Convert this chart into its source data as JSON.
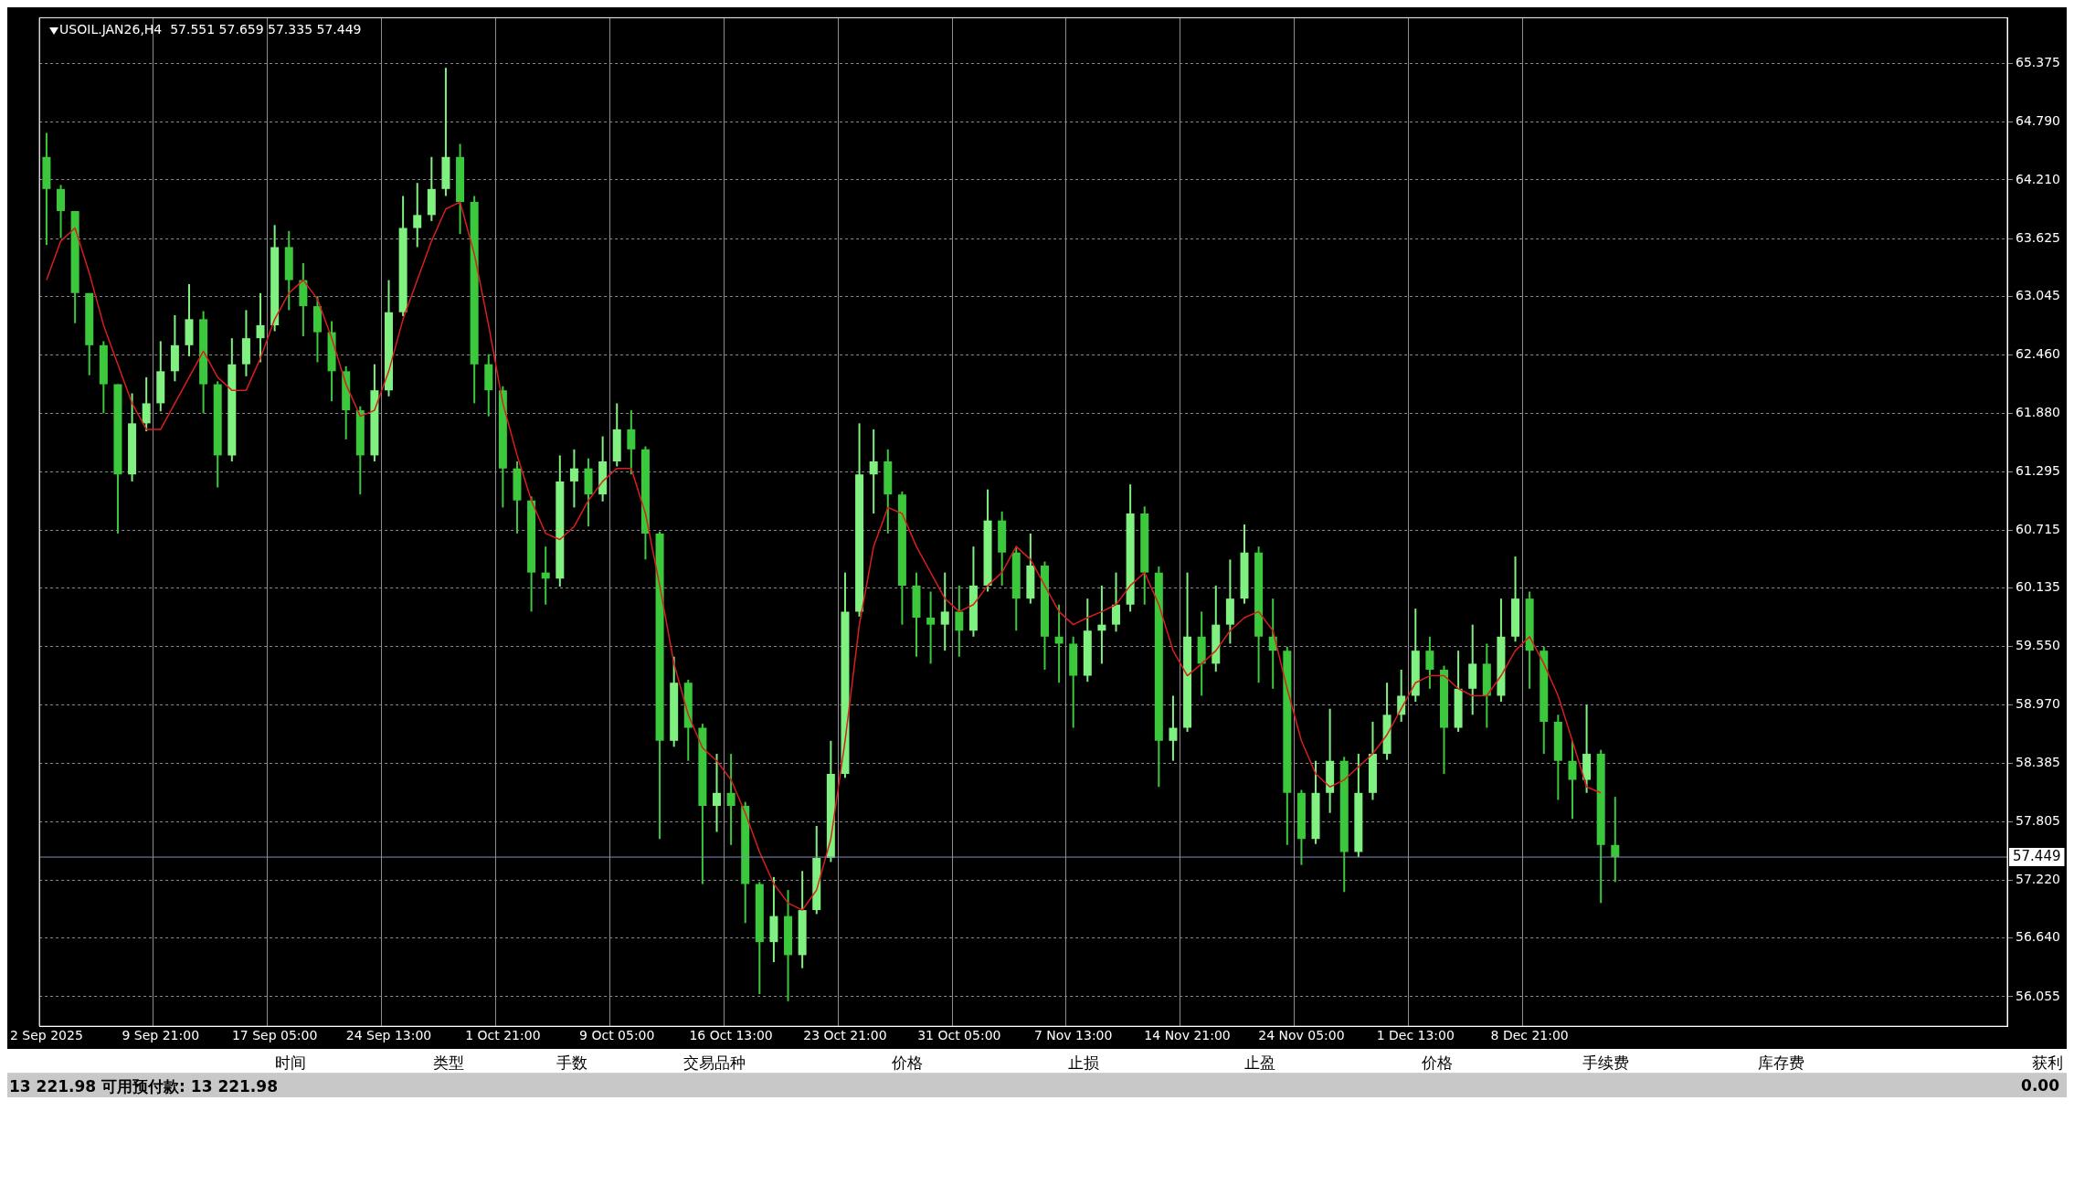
{
  "chart_data": {
    "type": "candlestick",
    "title": "USOIL.JAN26,H4  57.551 57.659 57.335 57.449",
    "categories": [
      "2 Sep 2025",
      null,
      null,
      null,
      null,
      null,
      null,
      null,
      "9 Sep 21:00",
      null,
      null,
      null,
      null,
      null,
      null,
      null,
      "17 Sep 05:00",
      null,
      null,
      null,
      null,
      null,
      null,
      null,
      "24 Sep 13:00",
      null,
      null,
      null,
      null,
      null,
      null,
      null,
      "1 Oct 21:00",
      null,
      null,
      null,
      null,
      null,
      null,
      null,
      "9 Oct 05:00",
      null,
      null,
      null,
      null,
      null,
      null,
      null,
      "16 Oct 13:00",
      null,
      null,
      null,
      null,
      null,
      null,
      null,
      "23 Oct 21:00",
      null,
      null,
      null,
      null,
      null,
      null,
      null,
      "31 Oct 05:00",
      null,
      null,
      null,
      null,
      null,
      null,
      null,
      "7 Nov 13:00",
      null,
      null,
      null,
      null,
      null,
      null,
      null,
      "14 Nov 21:00",
      null,
      null,
      null,
      null,
      null,
      null,
      null,
      "24 Nov 05:00",
      null,
      null,
      null,
      null,
      null,
      null,
      null,
      "1 Dec 13:00",
      null,
      null,
      null,
      null,
      null,
      null,
      null,
      "8 Dec 21:00",
      null,
      null,
      null,
      null,
      null,
      null,
      null,
      null,
      null,
      null,
      null,
      null,
      null,
      null,
      null,
      null,
      null,
      null,
      null,
      null,
      null,
      null,
      null,
      null,
      null,
      null,
      null,
      null,
      null,
      null,
      null,
      null,
      null
    ],
    "colors": [
      "#3cc83c",
      "#3cc83c",
      "#3cc83c",
      "#3cc83c",
      "#3cc83c",
      "#3cc83c",
      "#80f080",
      "#80f080",
      "#80f080",
      "#80f080",
      "#80f080",
      "#3cc83c",
      "#3cc83c",
      "#80f080",
      "#80f080",
      "#80f080",
      "#80f080",
      "#3cc83c",
      "#3cc83c",
      "#3cc83c",
      "#3cc83c",
      "#3cc83c",
      "#3cc83c",
      "#80f080",
      "#80f080",
      "#80f080",
      "#80f080",
      "#80f080",
      "#80f080",
      "#3cc83c",
      "#3cc83c",
      "#3cc83c",
      "#3cc83c",
      "#3cc83c",
      "#3cc83c",
      "#3cc83c",
      "#80f080",
      "#80f080",
      "#3cc83c",
      "#80f080",
      "#80f080",
      "#3cc83c",
      "#3cc83c",
      "#3cc83c",
      "#80f080",
      "#3cc83c",
      "#3cc83c",
      "#80f080",
      "#3cc83c",
      "#3cc83c",
      "#3cc83c",
      "#80f080",
      "#3cc83c",
      "#80f080",
      "#80f080",
      "#80f080",
      "#80f080",
      "#80f080",
      "#80f080",
      "#3cc83c",
      "#3cc83c",
      "#3cc83c",
      "#3cc83c",
      "#80f080",
      "#3cc83c",
      "#80f080",
      "#80f080",
      "#3cc83c",
      "#3cc83c",
      "#80f080",
      "#3cc83c",
      "#3cc83c",
      "#3cc83c",
      "#80f080",
      "#80f080",
      "#80f080",
      "#80f080",
      "#3cc83c",
      "#3cc83c",
      "#80f080",
      "#80f080",
      "#3cc83c",
      "#80f080",
      "#80f080",
      "#80f080",
      "#3cc83c",
      "#3cc83c",
      "#3cc83c",
      "#3cc83c",
      "#80f080",
      "#80f080",
      "#3cc83c",
      "#80f080",
      "#80f080",
      "#80f080",
      "#80f080",
      "#80f080",
      "#3cc83c",
      "#3cc83c",
      "#80f080",
      "#80f080",
      "#3cc83c",
      "#80f080",
      "#80f080",
      "#3cc83c",
      "#3cc83c",
      "#3cc83c",
      "#3cc83c",
      "#80f080",
      "#3cc83c",
      "#3cc83c",
      null,
      null,
      null,
      null,
      null,
      null,
      null,
      null,
      null,
      null,
      null,
      null,
      null,
      null,
      null,
      null,
      null,
      null,
      null,
      null,
      null,
      null,
      null,
      null,
      null,
      null,
      null
    ],
    "ohlc": [
      [
        64.44,
        64.68,
        63.56,
        64.12
      ],
      [
        64.12,
        64.16,
        63.63,
        63.9
      ],
      [
        63.9,
        63.9,
        62.78,
        63.08
      ],
      [
        63.08,
        63.08,
        62.26,
        62.56
      ],
      [
        62.56,
        62.6,
        61.88,
        62.17
      ],
      [
        62.17,
        62.17,
        60.68,
        61.27
      ],
      [
        61.27,
        62.08,
        61.2,
        61.78
      ],
      [
        61.78,
        62.24,
        61.7,
        61.98
      ],
      [
        61.98,
        62.6,
        61.9,
        62.3
      ],
      [
        62.3,
        62.86,
        62.2,
        62.56
      ],
      [
        62.56,
        63.17,
        62.45,
        62.82
      ],
      [
        62.82,
        62.9,
        61.88,
        62.17
      ],
      [
        62.17,
        62.2,
        61.14,
        61.46
      ],
      [
        61.46,
        62.63,
        61.4,
        62.37
      ],
      [
        62.37,
        62.91,
        62.25,
        62.63
      ],
      [
        62.63,
        63.08,
        62.39,
        62.76
      ],
      [
        62.76,
        63.76,
        62.7,
        63.54
      ],
      [
        63.54,
        63.7,
        62.91,
        63.21
      ],
      [
        63.21,
        63.38,
        62.65,
        62.95
      ],
      [
        62.95,
        63.05,
        62.39,
        62.69
      ],
      [
        62.69,
        62.8,
        62.0,
        62.3
      ],
      [
        62.3,
        62.35,
        61.62,
        61.91
      ],
      [
        61.91,
        61.95,
        61.07,
        61.46
      ],
      [
        61.46,
        62.37,
        61.4,
        62.11
      ],
      [
        62.11,
        63.21,
        62.05,
        62.89
      ],
      [
        62.89,
        64.05,
        62.85,
        63.73
      ],
      [
        63.73,
        64.18,
        63.54,
        63.86
      ],
      [
        63.86,
        64.44,
        63.8,
        64.12
      ],
      [
        64.12,
        65.33,
        64.05,
        64.44
      ],
      [
        64.44,
        64.57,
        63.67,
        63.99
      ],
      [
        63.99,
        64.05,
        61.98,
        62.37
      ],
      [
        62.37,
        62.47,
        61.85,
        62.11
      ],
      [
        62.11,
        62.15,
        60.94,
        61.33
      ],
      [
        61.33,
        61.4,
        60.68,
        61.01
      ],
      [
        61.01,
        61.05,
        59.9,
        60.29
      ],
      [
        60.29,
        60.55,
        59.97,
        60.23
      ],
      [
        60.23,
        61.46,
        60.15,
        61.2
      ],
      [
        61.2,
        61.52,
        60.94,
        61.33
      ],
      [
        61.33,
        61.43,
        60.75,
        61.07
      ],
      [
        61.07,
        61.65,
        61.0,
        61.4
      ],
      [
        61.4,
        61.98,
        61.35,
        61.72
      ],
      [
        61.72,
        61.91,
        61.27,
        61.52
      ],
      [
        61.52,
        61.55,
        60.42,
        60.68
      ],
      [
        60.68,
        60.7,
        57.63,
        58.61
      ],
      [
        58.61,
        59.45,
        58.55,
        59.19
      ],
      [
        59.19,
        59.22,
        58.41,
        58.74
      ],
      [
        58.74,
        58.78,
        57.18,
        57.96
      ],
      [
        57.96,
        58.48,
        57.7,
        58.09
      ],
      [
        58.09,
        58.48,
        57.57,
        57.96
      ],
      [
        57.96,
        58.0,
        56.79,
        57.18
      ],
      [
        57.18,
        57.2,
        56.08,
        56.6
      ],
      [
        56.6,
        57.25,
        56.4,
        56.86
      ],
      [
        56.86,
        57.12,
        56.01,
        56.47
      ],
      [
        56.47,
        57.31,
        56.34,
        56.92
      ],
      [
        56.92,
        57.76,
        56.88,
        57.44
      ],
      [
        57.44,
        58.61,
        57.4,
        58.28
      ],
      [
        58.28,
        60.29,
        58.24,
        59.9
      ],
      [
        59.9,
        61.78,
        59.85,
        61.27
      ],
      [
        61.27,
        61.72,
        60.88,
        61.4
      ],
      [
        61.4,
        61.52,
        60.68,
        61.07
      ],
      [
        61.07,
        61.1,
        59.77,
        60.16
      ],
      [
        60.16,
        60.29,
        59.45,
        59.84
      ],
      [
        59.84,
        60.1,
        59.38,
        59.77
      ],
      [
        59.77,
        60.29,
        59.51,
        59.9
      ],
      [
        59.9,
        60.16,
        59.45,
        59.71
      ],
      [
        59.71,
        60.55,
        59.65,
        60.16
      ],
      [
        60.16,
        61.12,
        60.1,
        60.81
      ],
      [
        60.81,
        60.9,
        60.16,
        60.49
      ],
      [
        60.49,
        60.55,
        59.71,
        60.03
      ],
      [
        60.03,
        60.68,
        59.98,
        60.36
      ],
      [
        60.36,
        60.4,
        59.32,
        59.65
      ],
      [
        59.65,
        59.97,
        59.19,
        59.58
      ],
      [
        59.58,
        59.65,
        58.74,
        59.26
      ],
      [
        59.26,
        60.03,
        59.2,
        59.71
      ],
      [
        59.71,
        60.16,
        59.38,
        59.77
      ],
      [
        59.77,
        60.29,
        59.7,
        59.97
      ],
      [
        59.97,
        61.17,
        59.9,
        60.88
      ],
      [
        60.88,
        60.95,
        59.97,
        60.29
      ],
      [
        60.29,
        60.35,
        58.15,
        58.61
      ],
      [
        58.61,
        59.06,
        58.41,
        58.74
      ],
      [
        58.74,
        60.29,
        58.7,
        59.65
      ],
      [
        59.65,
        59.9,
        59.06,
        59.38
      ],
      [
        59.38,
        60.16,
        59.3,
        59.77
      ],
      [
        59.77,
        60.42,
        59.58,
        60.03
      ],
      [
        60.03,
        60.77,
        59.98,
        60.49
      ],
      [
        60.49,
        60.55,
        59.19,
        59.65
      ],
      [
        59.65,
        60.03,
        59.13,
        59.51
      ],
      [
        59.51,
        59.55,
        57.57,
        58.09
      ],
      [
        58.09,
        58.12,
        57.37,
        57.63
      ],
      [
        57.63,
        58.41,
        57.58,
        58.09
      ],
      [
        58.09,
        58.93,
        57.89,
        58.41
      ],
      [
        58.41,
        58.45,
        57.1,
        57.5
      ],
      [
        57.5,
        58.48,
        57.45,
        58.09
      ],
      [
        58.09,
        58.8,
        58.02,
        58.48
      ],
      [
        58.48,
        59.19,
        58.42,
        58.87
      ],
      [
        58.87,
        59.32,
        58.8,
        59.06
      ],
      [
        59.06,
        59.93,
        59.0,
        59.51
      ],
      [
        59.51,
        59.65,
        59.13,
        59.32
      ],
      [
        59.32,
        59.36,
        58.28,
        58.74
      ],
      [
        58.74,
        59.51,
        58.7,
        59.13
      ],
      [
        59.13,
        59.77,
        58.87,
        59.38
      ],
      [
        59.38,
        59.58,
        58.74,
        59.06
      ],
      [
        59.06,
        60.03,
        59.0,
        59.65
      ],
      [
        59.65,
        60.45,
        59.6,
        60.03
      ],
      [
        60.03,
        60.1,
        59.13,
        59.51
      ],
      [
        59.51,
        59.55,
        58.48,
        58.8
      ],
      [
        58.8,
        58.87,
        58.02,
        58.41
      ],
      [
        58.41,
        58.61,
        57.83,
        58.22
      ],
      [
        58.22,
        58.97,
        58.09,
        58.48
      ],
      [
        58.48,
        58.52,
        56.99,
        57.57
      ],
      [
        57.57,
        58.05,
        57.2,
        57.449
      ],
      null,
      null,
      null,
      null,
      null,
      null,
      null,
      null,
      null,
      null,
      null,
      null,
      null,
      null,
      null,
      null,
      null,
      null,
      null,
      null,
      null,
      null,
      null,
      null,
      null,
      null,
      null
    ],
    "series": [
      {
        "type": "line",
        "color": "#d81e1e",
        "values": [
          63.21,
          63.6,
          63.73,
          63.28,
          62.76,
          62.37,
          61.98,
          61.72,
          61.72,
          61.98,
          62.24,
          62.5,
          62.24,
          62.11,
          62.11,
          62.43,
          62.82,
          63.08,
          63.21,
          63.02,
          62.63,
          62.17,
          61.85,
          61.91,
          62.3,
          62.82,
          63.21,
          63.6,
          63.92,
          63.99,
          63.47,
          62.76,
          61.98,
          61.46,
          61.01,
          60.68,
          60.62,
          60.75,
          61.01,
          61.2,
          61.33,
          61.33,
          60.88,
          60.16,
          59.38,
          58.87,
          58.54,
          58.41,
          58.22,
          57.89,
          57.5,
          57.18,
          56.99,
          56.92,
          57.12,
          57.63,
          58.61,
          59.77,
          60.55,
          60.94,
          60.88,
          60.55,
          60.29,
          60.03,
          59.9,
          59.97,
          60.16,
          60.29,
          60.55,
          60.42,
          60.16,
          59.9,
          59.77,
          59.84,
          59.9,
          59.97,
          60.16,
          60.29,
          59.97,
          59.51,
          59.26,
          59.38,
          59.51,
          59.71,
          59.84,
          59.9,
          59.71,
          59.13,
          58.61,
          58.28,
          58.15,
          58.22,
          58.35,
          58.48,
          58.67,
          58.93,
          59.19,
          59.26,
          59.26,
          59.13,
          59.06,
          59.06,
          59.26,
          59.51,
          59.65,
          59.38,
          59.06,
          58.61,
          58.15,
          58.09,
          null,
          null,
          null,
          null,
          null,
          null,
          null,
          null,
          null,
          null,
          null,
          null,
          null,
          null,
          null,
          null,
          null,
          null,
          null,
          null,
          null,
          null,
          null,
          null,
          null,
          null,
          null,
          null
        ]
      }
    ],
    "ylim": [
      55.76,
      65.83
    ],
    "yticks": [
      {
        "value": 65.375,
        "label": "65.375"
      },
      {
        "value": 64.79,
        "label": "64.790"
      },
      {
        "value": 64.21,
        "label": "64.210"
      },
      {
        "value": 63.625,
        "label": "63.625"
      },
      {
        "value": 63.045,
        "label": "63.045"
      },
      {
        "value": 62.46,
        "label": "62.460"
      },
      {
        "value": 61.88,
        "label": "61.880"
      },
      {
        "value": 61.295,
        "label": "61.295"
      },
      {
        "value": 60.715,
        "label": "60.715"
      },
      {
        "value": 60.135,
        "label": "60.135"
      },
      {
        "value": 59.55,
        "label": "59.550"
      },
      {
        "value": 58.97,
        "label": "58.970"
      },
      {
        "value": 58.385,
        "label": "58.385"
      },
      {
        "value": 57.805,
        "label": "57.805"
      },
      {
        "value": 57.22,
        "label": "57.220"
      },
      {
        "value": 56.64,
        "label": "56.640"
      },
      {
        "value": 56.055,
        "label": "56.055"
      }
    ],
    "ref_lines": [
      {
        "axis": "y",
        "value": 57.449,
        "label": "57.449",
        "color": "#7f8fb0"
      }
    ],
    "grid": true,
    "annotations": [
      "时间",
      "类型",
      "手数",
      "交易品种",
      "价格",
      "止损",
      "止盈",
      "价格",
      "手续费",
      "库存费",
      "获利",
      "13 221.98  可用预付款: 13 221.98",
      "0.00"
    ]
  }
}
